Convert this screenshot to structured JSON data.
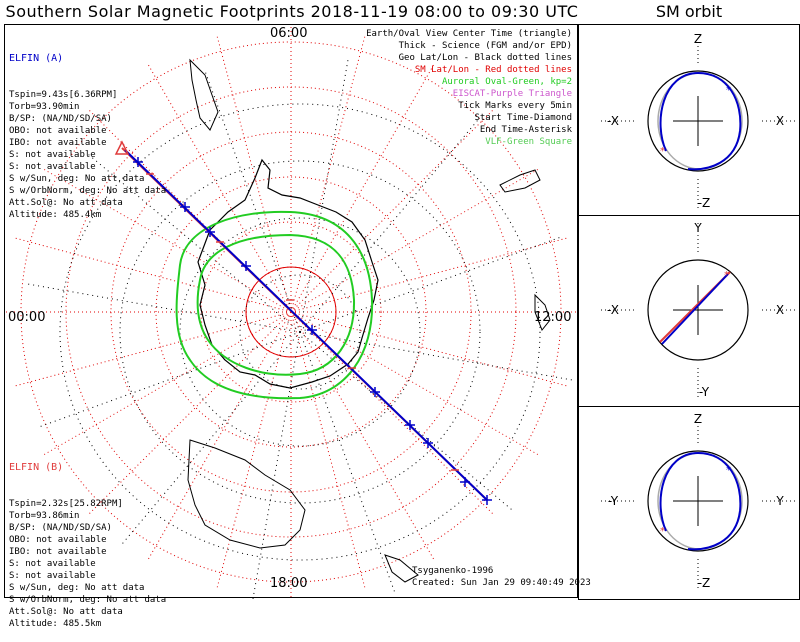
{
  "header": {
    "title": "Southern Solar Magnetic Footprints 2018-11-19 08:00 to 09:30 UTC",
    "orbit_title": "SM orbit"
  },
  "clock_labels": {
    "top": "06:00",
    "left": "00:00",
    "right": "12:00",
    "bottom": "18:00"
  },
  "elfin_a": {
    "name": "ELFIN (A)",
    "lines": [
      "Tspin=9.43s[6.36RPM]",
      "Torb=93.90min",
      "B/SP: (NA/ND/SD/SA)",
      "OBO: not available",
      "IBO: not available",
      "S: not available",
      "S: not available",
      "S w/Sun, deg: No att data",
      "S w/OrbNorm, deg: No att data",
      "Att.Sol@: No att data",
      "Altitude: 485.4km"
    ],
    "color": "#0000c8"
  },
  "elfin_b": {
    "name": "ELFIN (B)",
    "lines": [
      "Tspin=2.32s[25.82RPM]",
      "Torb=93.86min",
      "B/SP: (NA/ND/SD/SA)",
      "OBO: not available",
      "IBO: not available",
      "S: not available",
      "S: not available",
      "S w/Sun, deg: No att data",
      "S w/OrbNorm, deg: No att data",
      "Att.Sol@: No att data",
      "Altitude: 485.5km"
    ],
    "color": "#e03c3c"
  },
  "legend": [
    {
      "text": "Earth/Oval View Center Time (triangle)",
      "color": "#000000"
    },
    {
      "text": "Thick - Science (FGM and/or EPD)",
      "color": "#000000"
    },
    {
      "text": "Geo Lat/Lon - Black dotted lines",
      "color": "#000000"
    },
    {
      "text": "SM Lat/Lon - Red dotted lines",
      "color": "#e00000"
    },
    {
      "text": "Auroral Oval-Green, kp=2",
      "color": "#22cc22"
    },
    {
      "text": "EISCAT-Purple Triangle",
      "color": "#cc55cc"
    },
    {
      "text": "Tick Marks every 5min",
      "color": "#000000"
    },
    {
      "text": "Start Time-Diamond",
      "color": "#000000"
    },
    {
      "text": "End Time-Asterisk",
      "color": "#000000"
    },
    {
      "text": "VLF-Green Square",
      "color": "#55cc55"
    }
  ],
  "footer": {
    "model": "Tsyganenko-1996",
    "created": "Created: Sun Jan 29 09:40:49 2023"
  },
  "orbit_panels": {
    "xz": {
      "top": "Z",
      "bottom": "-Z",
      "left": "-X",
      "right": "X"
    },
    "xy": {
      "top": "Y",
      "bottom": "-Y",
      "left": "-X",
      "right": "X"
    },
    "yz": {
      "top": "Z",
      "bottom": "-Z",
      "left": "-Y",
      "right": "Y"
    }
  },
  "colors": {
    "elfin_a": "#0000c8",
    "elfin_b": "#e03c3c",
    "oval": "#22cc22",
    "sm_grid": "#e00000",
    "geo_grid": "#000000"
  }
}
